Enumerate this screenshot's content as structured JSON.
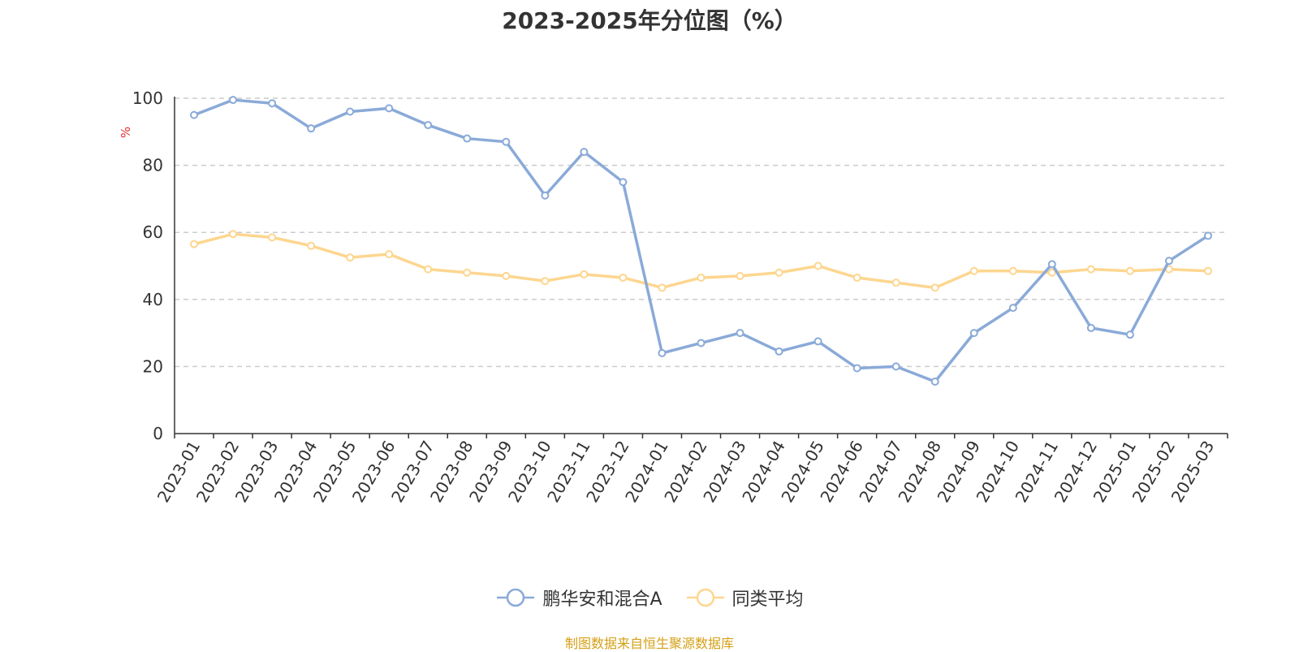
{
  "chart_data": {
    "type": "line",
    "title": "2023-2025年分位图（%）",
    "ylabel": "%",
    "xlabel": "",
    "ylim": [
      0,
      100
    ],
    "yticks": [
      0,
      20,
      40,
      60,
      80,
      100
    ],
    "grid": "horizontal dashed",
    "legend_position": "bottom",
    "categories": [
      "2023-01",
      "2023-02",
      "2023-03",
      "2023-04",
      "2023-05",
      "2023-06",
      "2023-07",
      "2023-08",
      "2023-09",
      "2023-10",
      "2023-11",
      "2023-12",
      "2024-01",
      "2024-02",
      "2024-03",
      "2024-04",
      "2024-05",
      "2024-06",
      "2024-07",
      "2024-08",
      "2024-09",
      "2024-10",
      "2024-11",
      "2024-12",
      "2025-01",
      "2025-02",
      "2025-03"
    ],
    "series": [
      {
        "name": "鹏华安和混合A",
        "color": "#8aaad8",
        "values": [
          95.0,
          99.5,
          98.5,
          91.0,
          96.0,
          97.0,
          92.0,
          88.0,
          87.0,
          71.0,
          84.0,
          75.0,
          24.0,
          27.0,
          30.0,
          24.5,
          27.5,
          19.5,
          20.0,
          15.5,
          30.0,
          37.5,
          50.5,
          31.5,
          29.5,
          51.5,
          59.0
        ]
      },
      {
        "name": "同类平均",
        "color": "#fdd68f",
        "values": [
          56.5,
          59.5,
          58.5,
          56.0,
          52.5,
          53.5,
          49.0,
          48.0,
          47.0,
          45.5,
          47.5,
          46.5,
          43.5,
          46.5,
          47.0,
          48.0,
          50.0,
          46.5,
          45.0,
          43.5,
          48.5,
          48.5,
          48.0,
          49.0,
          48.5,
          49.0,
          48.5
        ]
      }
    ]
  },
  "source_note": "制图数据来自恒生聚源数据库"
}
